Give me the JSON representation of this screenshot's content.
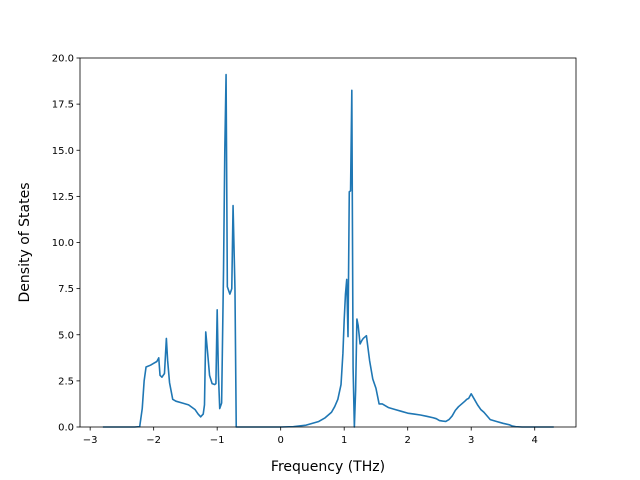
{
  "chart_data": {
    "type": "line",
    "title": "",
    "xlabel": "Frequency (THz)",
    "ylabel": "Density of States",
    "xlim": [
      -3.16,
      4.65
    ],
    "ylim": [
      0,
      20
    ],
    "xticks": [
      -3,
      -2,
      -1,
      0,
      1,
      2,
      3,
      4
    ],
    "xtick_labels": [
      "−3",
      "−2",
      "−1",
      "0",
      "1",
      "2",
      "3",
      "4"
    ],
    "yticks": [
      0,
      2.5,
      5,
      7.5,
      10,
      12.5,
      15,
      17.5,
      20
    ],
    "ytick_labels": [
      "0.0",
      "2.5",
      "5.0",
      "7.5",
      "10.0",
      "12.5",
      "15.0",
      "17.5",
      "20.0"
    ],
    "grid": false,
    "legend": "none",
    "colors": {
      "line": "#1f77b4"
    },
    "series": [
      {
        "x": [
          -2.8,
          -2.5,
          -2.3,
          -2.22,
          -2.18,
          -2.15,
          -2.12,
          -2.05,
          -2.0,
          -1.95,
          -1.92,
          -1.9,
          -1.87,
          -1.83,
          -1.8,
          -1.78,
          -1.75,
          -1.7,
          -1.65,
          -1.55,
          -1.45,
          -1.35,
          -1.3,
          -1.26,
          -1.22,
          -1.2,
          -1.18,
          -1.15,
          -1.12,
          -1.08,
          -1.04,
          -1.02,
          -1.0,
          -0.98,
          -0.96,
          -0.93,
          -0.9,
          -0.88,
          -0.86,
          -0.84,
          -0.8,
          -0.77,
          -0.75,
          -0.72,
          -0.7,
          -0.68,
          -0.66,
          -0.64,
          -0.5,
          -0.3,
          0.0,
          0.2,
          0.4,
          0.6,
          0.7,
          0.8,
          0.85,
          0.9,
          0.95,
          0.98,
          1.0,
          1.02,
          1.04,
          1.06,
          1.08,
          1.1,
          1.12,
          1.14,
          1.16,
          1.18,
          1.2,
          1.22,
          1.25,
          1.28,
          1.3,
          1.35,
          1.4,
          1.45,
          1.5,
          1.55,
          1.6,
          1.65,
          1.7,
          1.8,
          1.9,
          2.0,
          2.1,
          2.2,
          2.3,
          2.4,
          2.45,
          2.5,
          2.55,
          2.6,
          2.65,
          2.7,
          2.75,
          2.8,
          2.85,
          2.9,
          2.93,
          2.96,
          3.0,
          3.05,
          3.1,
          3.15,
          3.2,
          3.3,
          3.4,
          3.5,
          3.6,
          3.65,
          3.7,
          3.8,
          4.0,
          4.3
        ],
        "y": [
          0,
          0,
          0,
          0.02,
          1.0,
          2.5,
          3.25,
          3.35,
          3.45,
          3.55,
          3.75,
          2.8,
          2.7,
          2.9,
          4.8,
          3.6,
          2.4,
          1.5,
          1.4,
          1.3,
          1.2,
          0.95,
          0.7,
          0.55,
          0.7,
          1.2,
          5.15,
          4.0,
          2.8,
          2.35,
          2.3,
          2.35,
          6.35,
          2.8,
          1.0,
          1.3,
          8.5,
          15.0,
          19.1,
          7.6,
          7.2,
          7.5,
          12.0,
          7.5,
          0.0,
          0,
          0,
          0,
          0,
          0,
          0,
          0.02,
          0.1,
          0.3,
          0.5,
          0.8,
          1.1,
          1.5,
          2.3,
          4.0,
          5.8,
          7.2,
          8.0,
          4.9,
          12.75,
          12.8,
          18.25,
          3.2,
          0.0,
          2.0,
          5.85,
          5.5,
          4.5,
          4.7,
          4.8,
          4.95,
          3.6,
          2.6,
          2.1,
          1.25,
          1.25,
          1.15,
          1.05,
          0.95,
          0.85,
          0.75,
          0.7,
          0.65,
          0.58,
          0.5,
          0.45,
          0.35,
          0.32,
          0.3,
          0.4,
          0.6,
          0.9,
          1.1,
          1.25,
          1.4,
          1.5,
          1.55,
          1.8,
          1.5,
          1.2,
          0.95,
          0.8,
          0.4,
          0.3,
          0.2,
          0.12,
          0.05,
          0.02,
          0,
          0,
          0
        ]
      }
    ]
  }
}
